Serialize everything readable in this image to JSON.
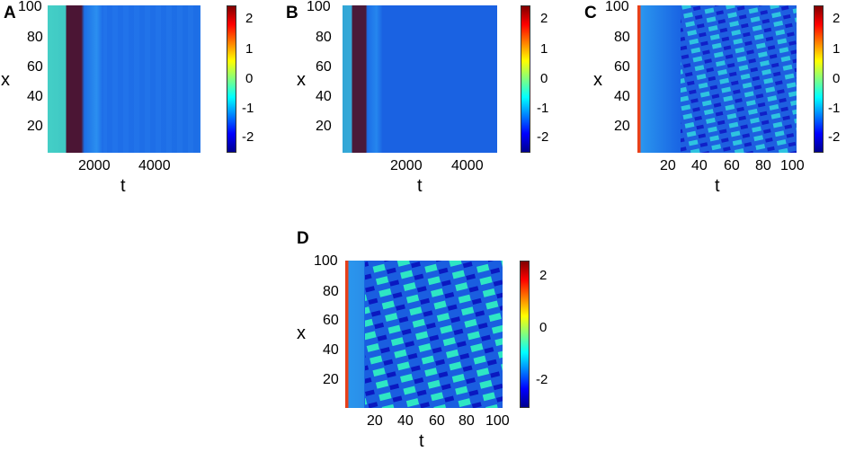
{
  "colorbar_gradient": [
    "#00008f",
    "#0000ff",
    "#0080ff",
    "#00ffff",
    "#80ff80",
    "#ffff00",
    "#ff8000",
    "#ff0000",
    "#800000"
  ],
  "chart_data": [
    {
      "panel": "A",
      "type": "heatmap",
      "xlabel": "t",
      "ylabel": "x",
      "xlim": [
        0,
        5000
      ],
      "ylim": [
        0,
        100
      ],
      "x_ticks": [
        "2000",
        "4000"
      ],
      "y_ticks": [
        "100",
        "80",
        "60",
        "40",
        "20"
      ],
      "colorbar": {
        "range": [
          -2.5,
          2.5
        ],
        "ticks": [
          "2",
          "1",
          "0",
          "-1",
          "-2"
        ]
      }
    },
    {
      "panel": "B",
      "type": "heatmap",
      "xlabel": "t",
      "ylabel": "x",
      "xlim": [
        0,
        5000
      ],
      "ylim": [
        0,
        100
      ],
      "x_ticks": [
        "2000",
        "4000"
      ],
      "y_ticks": [
        "100",
        "80",
        "60",
        "40",
        "20"
      ],
      "colorbar": {
        "range": [
          -2.5,
          2.5
        ],
        "ticks": [
          "2",
          "1",
          "0",
          "-1",
          "-2"
        ]
      }
    },
    {
      "panel": "C",
      "type": "heatmap",
      "xlabel": "t",
      "ylabel": "x",
      "xlim": [
        0,
        100
      ],
      "ylim": [
        0,
        100
      ],
      "x_ticks": [
        "20",
        "40",
        "60",
        "80",
        "100"
      ],
      "y_ticks": [
        "100",
        "80",
        "60",
        "40",
        "20"
      ],
      "colorbar": {
        "range": [
          -2.5,
          2.5
        ],
        "ticks": [
          "2",
          "1",
          "0",
          "-1",
          "-2"
        ]
      }
    },
    {
      "panel": "D",
      "type": "heatmap",
      "xlabel": "t",
      "ylabel": "x",
      "xlim": [
        0,
        100
      ],
      "ylim": [
        0,
        100
      ],
      "x_ticks": [
        "20",
        "40",
        "60",
        "80",
        "100"
      ],
      "y_ticks": [
        "100",
        "80",
        "60",
        "40",
        "20"
      ],
      "colorbar": {
        "range": [
          -3,
          2.5
        ],
        "ticks": [
          "2",
          "0",
          "-2"
        ]
      }
    }
  ]
}
